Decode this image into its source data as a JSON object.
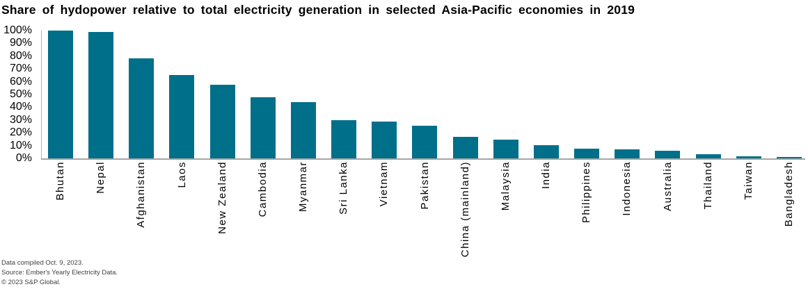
{
  "title": "Share of hydopower relative to total electricity generation in selected Asia-Pacific economies in 2019",
  "footer": {
    "compiled": "Data compiled Oct. 9, 2023.",
    "source": "Source: Ember's Yearly Electricity Data.",
    "copyright": "© 2023 S&P Global."
  },
  "colors": {
    "bar": "#006f8a",
    "x_axis_line": "#a6a6a6",
    "y_axis_line": "#b3b3b3",
    "title_text": "#000000",
    "footer_text": "#404040"
  },
  "chart_data": {
    "type": "bar",
    "title": "Share of hydopower relative to total electricity generation in selected Asia-Pacific economies in 2019",
    "categories": [
      "Bhutan",
      "Nepal",
      "Afghanistan",
      "Laos",
      "New Zealand",
      "Cambodia",
      "Myanmar",
      "Sri Lanka",
      "Vietnam",
      "Pakistan",
      "China (mainland)",
      "Malaysia",
      "India",
      "Philippines",
      "Indonesia",
      "Australia",
      "Thailand",
      "Taiwan",
      "Bangladesh"
    ],
    "values": [
      100,
      99,
      78,
      65,
      57.5,
      48,
      44,
      30,
      29,
      25.5,
      17,
      14.5,
      10.5,
      7.5,
      7,
      6,
      3.5,
      1.8,
      1.2
    ],
    "unit": "%",
    "xlabel": "",
    "ylabel": "",
    "ylim": [
      0,
      100
    ],
    "y_ticks": [
      "100%",
      "90%",
      "80%",
      "70%",
      "60%",
      "50%",
      "40%",
      "30%",
      "20%",
      "10%",
      "0%"
    ],
    "grid": false,
    "legend": null,
    "bar_color": "#006f8a"
  }
}
